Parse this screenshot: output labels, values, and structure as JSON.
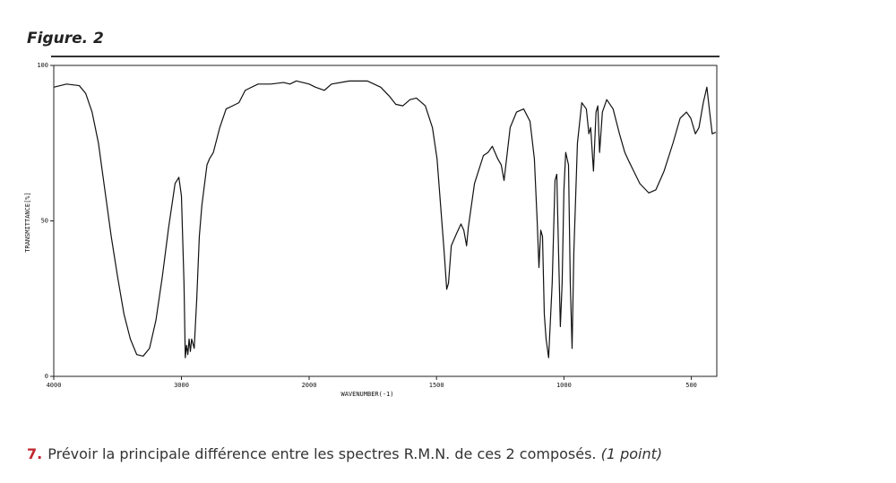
{
  "figure_label": "Figure. 2",
  "chart_data": {
    "type": "line",
    "x_label": "WAVENUMBER(-1)",
    "y_label": "TRANSMITTANCE[%]",
    "xlim": [
      4000,
      400
    ],
    "ylim": [
      0,
      100
    ],
    "xticks": [
      4000,
      3000,
      2000,
      1500,
      1000,
      500
    ],
    "yticks": [
      0,
      50,
      100
    ],
    "color": "#111111",
    "x": [
      4000,
      3900,
      3800,
      3750,
      3700,
      3650,
      3600,
      3550,
      3500,
      3450,
      3400,
      3350,
      3300,
      3250,
      3200,
      3150,
      3100,
      3050,
      3020,
      3000,
      2980,
      2970,
      2960,
      2950,
      2940,
      2930,
      2920,
      2900,
      2880,
      2860,
      2840,
      2800,
      2780,
      2750,
      2700,
      2650,
      2600,
      2550,
      2500,
      2400,
      2300,
      2200,
      2150,
      2100,
      2050,
      2000,
      1975,
      1940,
      1912,
      1842,
      1772,
      1719,
      1684,
      1660,
      1632,
      1604,
      1579,
      1544,
      1516,
      1498,
      1484,
      1470,
      1460,
      1453,
      1442,
      1421,
      1404,
      1393,
      1382,
      1375,
      1351,
      1316,
      1298,
      1281,
      1260,
      1246,
      1235,
      1225,
      1211,
      1186,
      1158,
      1133,
      1116,
      1105,
      1098,
      1091,
      1084,
      1077,
      1070,
      1060,
      1046,
      1035,
      1028,
      1021,
      1014,
      1007,
      1000,
      993,
      982,
      975,
      968,
      961,
      947,
      930,
      912,
      902,
      895,
      884,
      874,
      867,
      860,
      849,
      832,
      807,
      782,
      761,
      744,
      726,
      702,
      667,
      639,
      607,
      572,
      544,
      519,
      502,
      484,
      470,
      453,
      439,
      428,
      418,
      404
    ],
    "values": [
      93,
      94,
      93.5,
      91,
      85,
      75,
      60,
      45,
      32,
      20,
      12,
      7,
      6.5,
      9,
      18,
      32,
      48,
      62,
      64,
      58,
      30,
      6,
      10,
      7,
      12,
      8,
      12,
      9,
      25,
      45,
      55,
      68,
      70,
      72,
      80,
      86,
      87,
      88,
      92,
      94,
      94,
      94.5,
      94,
      95,
      94.5,
      94,
      93,
      92,
      94,
      95,
      95,
      93,
      90,
      87.5,
      87,
      89,
      89.5,
      87,
      80,
      70,
      55,
      40,
      28,
      30,
      42,
      46,
      49,
      47,
      42,
      48,
      62,
      71,
      72,
      74,
      70,
      68,
      63,
      70,
      80,
      85,
      86,
      82,
      70,
      50,
      35,
      47,
      45,
      20,
      12,
      6,
      30,
      63,
      65,
      40,
      16,
      30,
      60,
      72,
      68,
      30,
      9,
      40,
      75,
      88,
      86,
      78,
      80,
      66,
      85,
      87,
      72,
      85,
      89,
      86,
      78,
      72,
      69,
      66,
      62,
      59,
      60,
      66,
      75,
      83,
      85,
      83,
      78,
      80,
      88,
      93,
      85,
      78,
      78.5
    ]
  },
  "question": {
    "number": "7.",
    "text": "Prévoir la principale différence entre les spectres R.M.N. de ces 2 composés.",
    "points": "(1 point)"
  }
}
